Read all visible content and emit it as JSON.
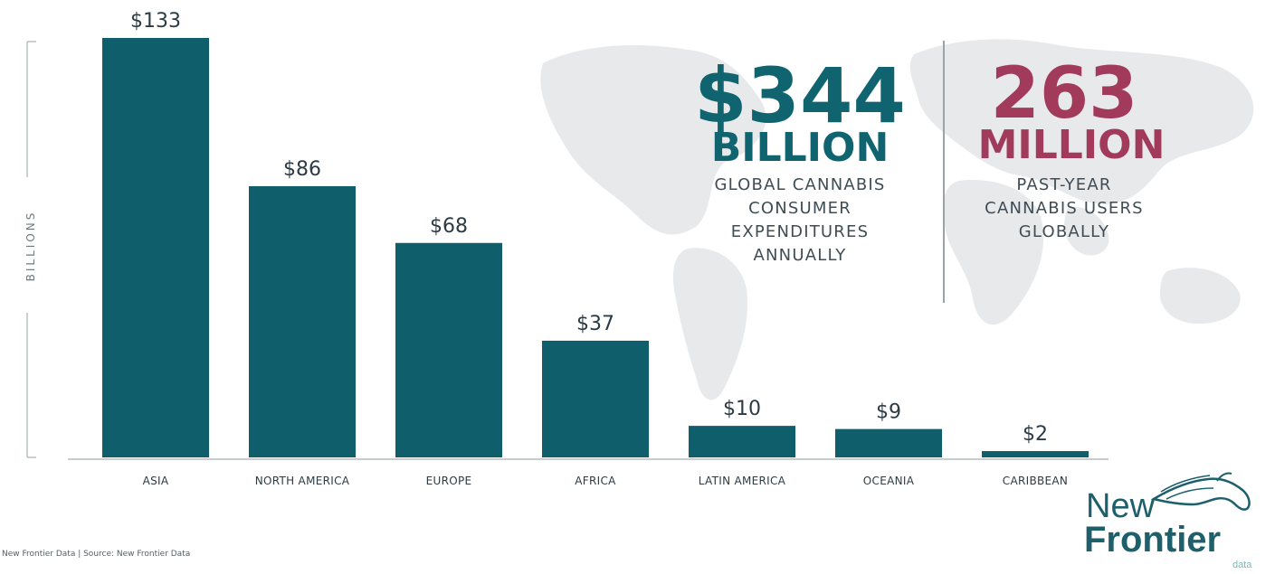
{
  "chart_data": {
    "type": "bar",
    "categories": [
      "ASIA",
      "NORTH AMERICA",
      "EUROPE",
      "AFRICA",
      "LATIN AMERICA",
      "OCEANIA",
      "CARIBBEAN"
    ],
    "values": [
      133,
      86,
      68,
      37,
      10,
      9,
      2
    ],
    "value_labels": [
      "$133",
      "$86",
      "$68",
      "$37",
      "$10",
      "$9",
      "$2"
    ],
    "ylabel": "BILLIONS",
    "ylim": [
      0,
      133
    ],
    "grid": false,
    "bar_color": "#0e5f6b"
  },
  "stats": {
    "expenditure": {
      "value": "$344",
      "unit": "BILLION",
      "lines": [
        "GLOBAL CANNABIS",
        "CONSUMER",
        "EXPENDITURES",
        "ANNUALLY"
      ],
      "color": "#10646f"
    },
    "users": {
      "value": "263",
      "unit": "MILLION",
      "lines": [
        "PAST-YEAR",
        "CANNABIS USERS",
        "GLOBALLY"
      ],
      "color": "#a23a5c"
    }
  },
  "source": "New Frontier Data | Source: New Frontier Data",
  "logo": {
    "line1": "New",
    "line2": "Frontier",
    "line3": "data",
    "icon": "horse-head-logo-icon"
  }
}
